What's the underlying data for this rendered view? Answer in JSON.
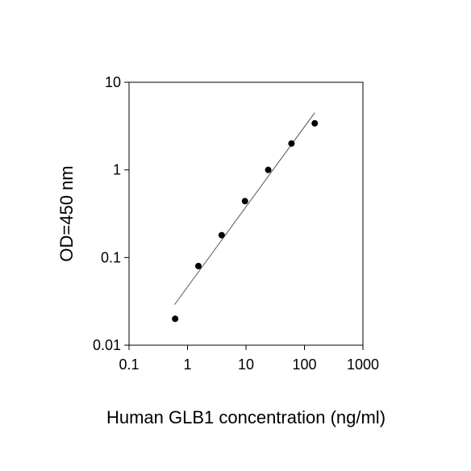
{
  "chart_data": {
    "type": "scatter",
    "x_label": "Human GLB1 concentration (ng/ml)",
    "y_label": "OD=450 nm",
    "x": [
      0.6144,
      1.536,
      3.84,
      9.6,
      24,
      60,
      150
    ],
    "values": [
      0.02,
      0.08,
      0.18,
      0.44,
      1.0,
      2.0,
      3.4
    ],
    "color": "#000000",
    "fit_line": {
      "x": [
        0.6,
        150
      ],
      "y": [
        0.029,
        4.5
      ],
      "color": "#555555"
    },
    "xlim": [
      0.1,
      1000
    ],
    "ylim": [
      0.01,
      10
    ],
    "xticks": [
      0.1,
      1,
      10,
      100,
      1000
    ],
    "yticks": [
      0.01,
      0.1,
      1,
      10
    ],
    "xscale": "log",
    "yscale": "log",
    "grid": false
  }
}
